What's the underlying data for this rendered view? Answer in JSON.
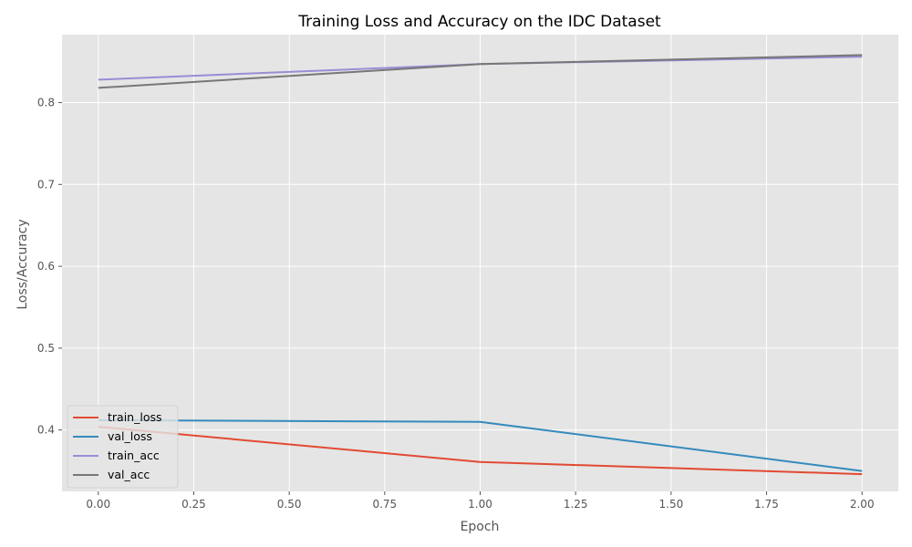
{
  "chart_data": {
    "type": "line",
    "title": "Training Loss and Accuracy on the IDC Dataset",
    "xlabel": "Epoch",
    "ylabel": "Loss/Accuracy",
    "xlim": [
      -0.095,
      2.095
    ],
    "ylim": [
      0.325,
      0.883
    ],
    "x": [
      0,
      1,
      2
    ],
    "x_ticks": [
      0.0,
      0.25,
      0.5,
      0.75,
      1.0,
      1.25,
      1.5,
      1.75,
      2.0
    ],
    "x_tick_labels": [
      "0.00",
      "0.25",
      "0.50",
      "0.75",
      "1.00",
      "1.25",
      "1.50",
      "1.75",
      "2.00"
    ],
    "y_ticks": [
      0.4,
      0.5,
      0.6,
      0.7,
      0.8
    ],
    "y_tick_labels": [
      "0.4",
      "0.5",
      "0.6",
      "0.7",
      "0.8"
    ],
    "grid": true,
    "legend_position": "lower-left",
    "series": [
      {
        "name": "train_loss",
        "color": "#E24A33",
        "values": [
          0.404,
          0.361,
          0.346
        ]
      },
      {
        "name": "val_loss",
        "color": "#348ABD",
        "values": [
          0.412,
          0.41,
          0.35
        ]
      },
      {
        "name": "train_acc",
        "color": "#988ED5",
        "values": [
          0.828,
          0.847,
          0.856
        ]
      },
      {
        "name": "val_acc",
        "color": "#777777",
        "values": [
          0.818,
          0.847,
          0.858
        ]
      }
    ],
    "colors": {
      "plot_background": "#E5E5E5",
      "grid": "#FFFFFF"
    }
  }
}
